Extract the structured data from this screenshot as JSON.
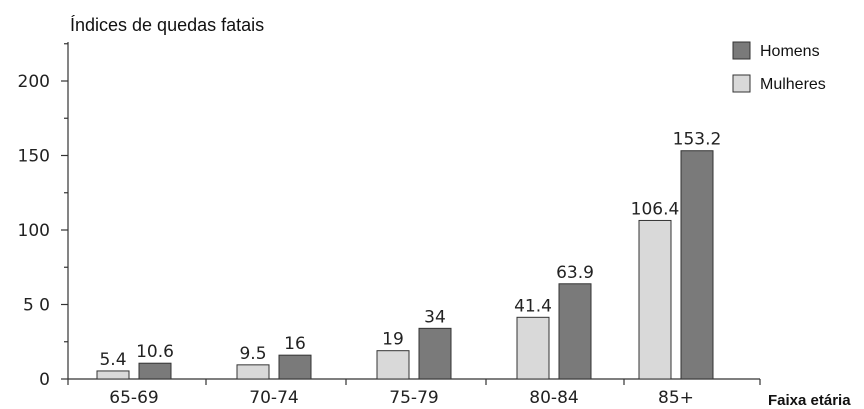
{
  "chart_data": {
    "type": "bar",
    "ylabel": "Índices de quedas fatais",
    "xlabel": "Faixa etária",
    "categories": [
      "65-69",
      "70-74",
      "75-79",
      "80-84",
      "85+"
    ],
    "series": [
      {
        "name": "Mulheres",
        "color": "#d9d9d9",
        "values": [
          5.4,
          9.5,
          19,
          41.4,
          106.4
        ],
        "labels": [
          "5.4",
          "9.5",
          "19",
          "41.4",
          "106.4"
        ]
      },
      {
        "name": "Homens",
        "color": "#7a7a7a",
        "values": [
          10.6,
          16,
          34,
          63.9,
          153.2
        ],
        "labels": [
          "10.6",
          "16",
          "34",
          "63.9",
          "153.2"
        ]
      }
    ],
    "yticks": [
      0,
      50,
      100,
      150,
      200
    ],
    "ytick_labels": [
      "0",
      "5 0",
      "100",
      "150",
      "200"
    ],
    "ylim": [
      0,
      225
    ],
    "legend": {
      "placement": "top-right",
      "order": [
        "Homens",
        "Mulheres"
      ]
    },
    "grid": false
  }
}
